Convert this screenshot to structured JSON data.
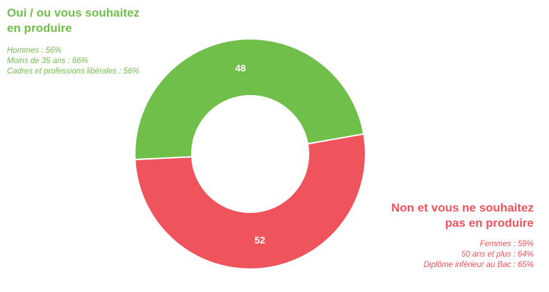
{
  "chart_data": {
    "type": "pie",
    "donut": true,
    "categories": [
      "Oui / ou vous souhaitez en produire",
      "Non et vous ne souhaitez pas en produire"
    ],
    "values": [
      48,
      52
    ],
    "colors": [
      "#70bf4b",
      "#ef535b"
    ],
    "value_labels": [
      "48",
      "52"
    ]
  },
  "legend": {
    "yes": {
      "title_line1": "Oui / ou vous souhaitez",
      "title_line2": "en produire",
      "notes": [
        "Hommes : 56%",
        "Moins de 35 ans : 66%",
        "Cadres et professions libérales : 56%"
      ],
      "color": "#70bf4b"
    },
    "no": {
      "title_line1": "Non et vous ne souhaitez",
      "title_line2": "pas en produire",
      "notes": [
        "Femmes : 59%",
        "50 ans et plus : 64%",
        "Diplôme inférieur au Bac : 65%"
      ],
      "color": "#ef535b"
    }
  }
}
